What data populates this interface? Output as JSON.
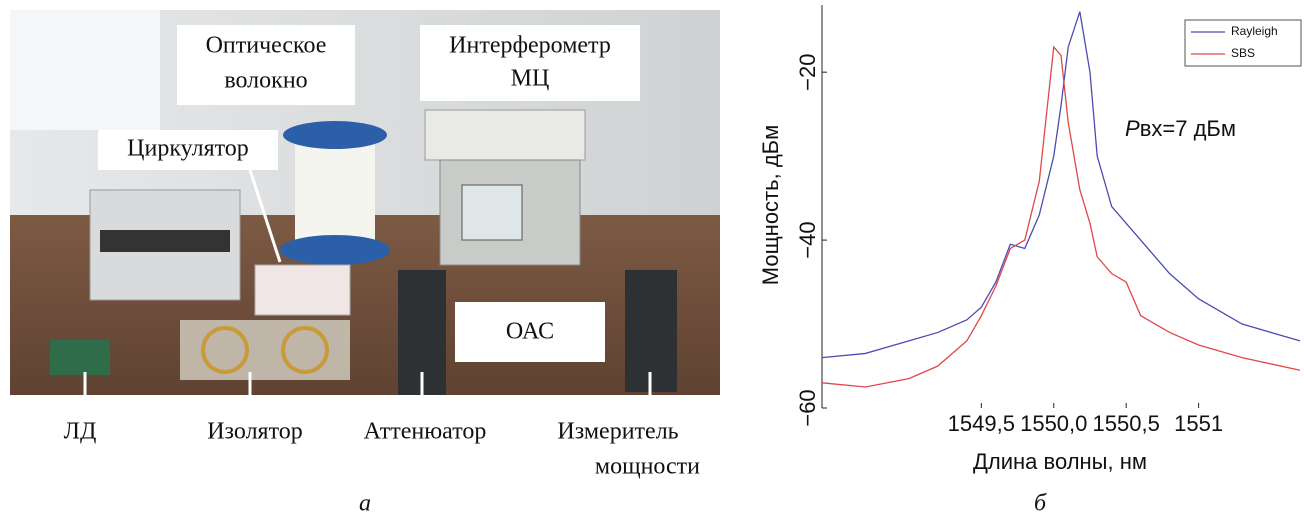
{
  "figure_a": {
    "callouts": [
      {
        "lines": [
          "Оптическое",
          "волокно"
        ]
      },
      {
        "lines": [
          "Интерферометр",
          "МЦ"
        ]
      },
      {
        "lines": [
          "Циркулятор"
        ]
      },
      {
        "lines": [
          "ОАС"
        ]
      }
    ],
    "bottom_labels": [
      {
        "lines": [
          "ЛД"
        ]
      },
      {
        "lines": [
          "Изолятор"
        ]
      },
      {
        "lines": [
          "Аттенюатор"
        ]
      },
      {
        "lines": [
          "Измеритель",
          "мощности"
        ]
      }
    ],
    "caption": "а"
  },
  "chart_data": {
    "type": "line",
    "x_label": "Длина волны, нм",
    "y_label": "Мощность, дБм",
    "annotation": {
      "italic": "P",
      "text": "вх=7 дБм"
    },
    "caption": "б",
    "x": [
      1548.4,
      1548.7,
      1549.0,
      1549.2,
      1549.4,
      1549.5,
      1549.6,
      1549.7,
      1549.8,
      1549.9,
      1550.0,
      1550.05,
      1550.1,
      1550.18,
      1550.25,
      1550.3,
      1550.4,
      1550.5,
      1550.6,
      1550.8,
      1551.0,
      1551.3,
      1551.7
    ],
    "series": [
      {
        "name": "Rayleigh",
        "color": "#4b4bb4",
        "values": [
          -54,
          -53.5,
          -52,
          -51,
          -49.5,
          -48,
          -45,
          -40.5,
          -41,
          -37,
          -30,
          -24,
          -17,
          -12.8,
          -20,
          -30,
          -36,
          -38,
          -40,
          -44,
          -47,
          -50,
          -52
        ]
      },
      {
        "name": "SBS",
        "color": "#e0474c",
        "values": [
          -57,
          -57.5,
          -56.5,
          -55,
          -52,
          -49,
          -45.5,
          -41,
          -40,
          -33,
          -17,
          -18,
          -26,
          -34,
          -38,
          -42,
          -44,
          -45,
          -49,
          -51,
          -52.5,
          -54,
          -55.5
        ]
      }
    ],
    "xlim": [
      1548.4,
      1551.7
    ],
    "ylim": [
      -60,
      -12
    ],
    "xticks": [
      {
        "value": 1549.5,
        "label": "1549,5"
      },
      {
        "value": 1550.0,
        "label": "1550,0"
      },
      {
        "value": 1550.5,
        "label": "1550,5"
      },
      1551
    ],
    "yticks": [
      {
        "value": -60,
        "label": "−60"
      },
      {
        "value": -40,
        "label": "−40"
      },
      {
        "value": -20,
        "label": "−20"
      }
    ],
    "grid": false,
    "legend": "upper right"
  }
}
